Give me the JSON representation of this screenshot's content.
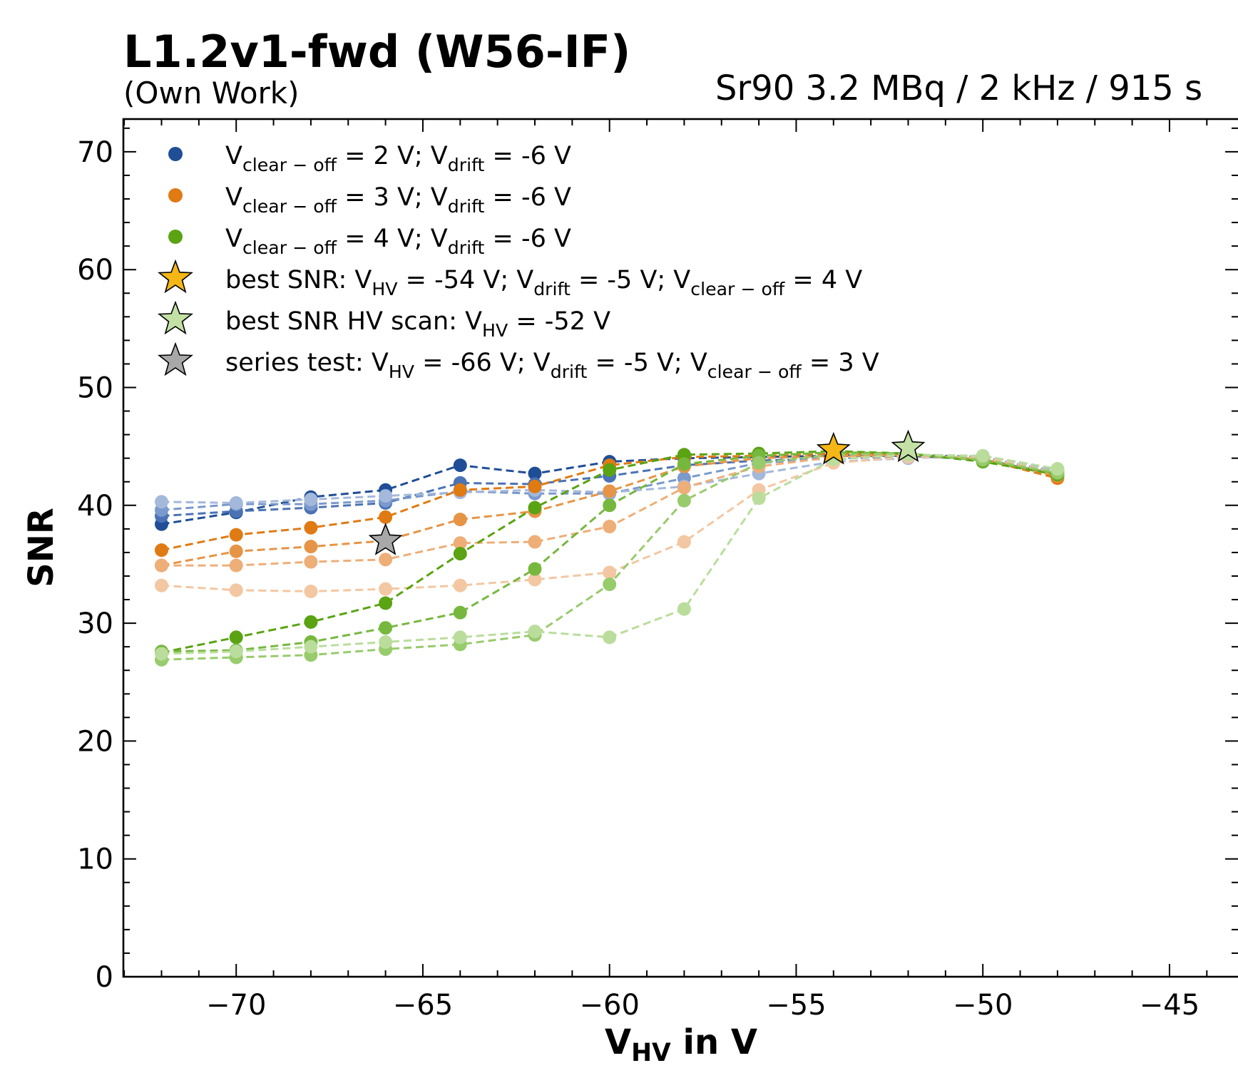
{
  "header": {
    "title": "L1.2v1-fwd (W56-IF)",
    "subtitle": "(Own Work)",
    "run_info": "Sr90 3.2 MBq / 2 kHz / 915 s"
  },
  "chart_data": {
    "type": "line",
    "title": "L1.2v1-fwd (W56-IF)",
    "subtitle": "(Own Work)",
    "annotation": "Sr90 3.2 MBq / 2 kHz / 915 s",
    "xlabel": "V_HV in V",
    "ylabel": "SNR",
    "xlim": [
      -75,
      -43
    ],
    "ylim": [
      0,
      73
    ],
    "xticks": [
      -70,
      -65,
      -60,
      -55,
      -50,
      -45
    ],
    "yticks": [
      0,
      10,
      20,
      30,
      40,
      50,
      60,
      70
    ],
    "x_tick_labels": [
      "−70",
      "−65",
      "−60",
      "−55",
      "−50",
      "−45"
    ],
    "y_tick_labels": [
      "0",
      "10",
      "20",
      "30",
      "40",
      "50",
      "60",
      "70"
    ],
    "grid": false,
    "legend_position": "upper-left",
    "line_style": "dashed",
    "x": [
      -72,
      -70,
      -68,
      -66,
      -64,
      -62,
      -60,
      -58,
      -56,
      -54,
      -52,
      -50,
      -48
    ],
    "series": [
      {
        "group": "V_clear-off = 2 V",
        "color": "#1f4e96",
        "opacity": 1.0,
        "values": [
          38.4,
          39.4,
          40.7,
          41.3,
          43.4,
          42.7,
          43.7,
          44.0,
          44.1,
          44.2,
          44.2,
          43.9,
          42.6
        ]
      },
      {
        "group": "V_clear-off = 2 V",
        "color": "#4a72b5",
        "opacity": 1.0,
        "values": [
          39.1,
          39.5,
          39.8,
          40.2,
          41.9,
          41.8,
          42.5,
          43.4,
          43.8,
          44.0,
          44.3,
          44.1,
          42.8
        ]
      },
      {
        "group": "V_clear-off = 2 V",
        "color": "#7a99cc",
        "opacity": 1.0,
        "values": [
          39.6,
          40.1,
          40.1,
          40.4,
          41.2,
          41.0,
          41.0,
          42.3,
          43.6,
          44.0,
          44.1,
          44.0,
          42.9
        ]
      },
      {
        "group": "V_clear-off = 2 V",
        "color": "#a4b8dc",
        "opacity": 1.0,
        "values": [
          40.3,
          40.2,
          40.5,
          40.8,
          41.1,
          41.3,
          41.1,
          41.6,
          42.7,
          43.7,
          44.0,
          44.2,
          43.0
        ]
      },
      {
        "group": "V_clear-off = 3 V",
        "color": "#e07a12",
        "opacity": 1.0,
        "values": [
          36.2,
          37.5,
          38.1,
          39.0,
          41.3,
          41.6,
          43.4,
          44.1,
          44.2,
          44.4,
          44.3,
          43.9,
          42.3
        ]
      },
      {
        "group": "V_clear-off = 3 V",
        "color": "#e69445",
        "opacity": 1.0,
        "values": [
          34.9,
          36.1,
          36.5,
          37.0,
          38.8,
          39.5,
          41.2,
          43.3,
          44.0,
          44.2,
          44.3,
          43.9,
          42.5
        ]
      },
      {
        "group": "V_clear-off = 3 V",
        "color": "#eeae78",
        "opacity": 1.0,
        "values": [
          34.9,
          34.9,
          35.2,
          35.4,
          36.8,
          36.9,
          38.2,
          41.5,
          43.3,
          44.1,
          44.2,
          44.0,
          42.6
        ]
      },
      {
        "group": "V_clear-off = 3 V",
        "color": "#f3c7a2",
        "opacity": 1.0,
        "values": [
          33.2,
          32.8,
          32.7,
          32.9,
          33.2,
          33.7,
          34.3,
          36.9,
          41.3,
          43.6,
          44.1,
          44.1,
          42.8
        ]
      },
      {
        "group": "V_clear-off = 4 V",
        "color": "#5aa312",
        "opacity": 1.0,
        "values": [
          27.5,
          28.8,
          30.1,
          31.7,
          35.9,
          39.8,
          43.0,
          44.3,
          44.4,
          44.6,
          44.4,
          43.7,
          42.6
        ]
      },
      {
        "group": "V_clear-off = 4 V",
        "color": "#76b83e",
        "opacity": 1.0,
        "values": [
          27.6,
          27.7,
          28.4,
          29.6,
          30.9,
          34.6,
          40.0,
          43.5,
          44.2,
          44.5,
          44.4,
          43.8,
          42.7
        ]
      },
      {
        "group": "V_clear-off = 4 V",
        "color": "#98cb6c",
        "opacity": 1.0,
        "values": [
          26.9,
          27.1,
          27.3,
          27.8,
          28.2,
          29.0,
          33.3,
          40.4,
          43.6,
          44.3,
          44.4,
          43.9,
          42.8
        ]
      },
      {
        "group": "V_clear-off = 4 V",
        "color": "#badd9c",
        "opacity": 1.0,
        "values": [
          27.4,
          27.6,
          28.0,
          28.4,
          28.8,
          29.3,
          28.8,
          31.2,
          40.6,
          43.9,
          44.3,
          44.2,
          43.1
        ]
      }
    ],
    "stars": [
      {
        "label": "best SNR",
        "x": -54,
        "y": 44.7,
        "color": "#f5b715"
      },
      {
        "label": "best SNR HV scan",
        "x": -52,
        "y": 44.9,
        "color": "#c3e0a5"
      },
      {
        "label": "series test",
        "x": -66,
        "y": 37.0,
        "color": "#a8a8a8"
      }
    ],
    "legend": [
      {
        "marker": "dot",
        "color": "#1f4e96",
        "V": "V",
        "sub1": "clear − off",
        "mid": " = 2 V; V",
        "sub2": "drift",
        "tail": " = -6 V"
      },
      {
        "marker": "dot",
        "color": "#e07a12",
        "V": "V",
        "sub1": "clear − off",
        "mid": " = 3 V; V",
        "sub2": "drift",
        "tail": " = -6 V"
      },
      {
        "marker": "dot",
        "color": "#5aa312",
        "V": "V",
        "sub1": "clear − off",
        "mid": " = 4 V; V",
        "sub2": "drift",
        "tail": " = -6 V"
      },
      {
        "marker": "star",
        "color": "#f5b715",
        "pre": "best SNR:  V",
        "s1": "HV",
        "m1": " = -54 V; V",
        "s2": "drift",
        "m2": " = -5 V; V",
        "s3": "clear − off",
        "m3": " = 4 V"
      },
      {
        "marker": "star",
        "color": "#c3e0a5",
        "pre": "best SNR HV scan:  V",
        "s1": "HV",
        "m1": " = -52 V",
        "s2": "",
        "m2": "",
        "s3": "",
        "m3": ""
      },
      {
        "marker": "star",
        "color": "#a8a8a8",
        "pre": "series test:  V",
        "s1": "HV",
        "m1": " = -66 V; V",
        "s2": "drift",
        "m2": " = -5 V; V",
        "s3": "clear − off",
        "m3": " = 3 V"
      }
    ],
    "axis_label_parts": {
      "x_main": "V",
      "x_sub": "HV",
      "x_tail": " in V",
      "y": "SNR"
    }
  }
}
